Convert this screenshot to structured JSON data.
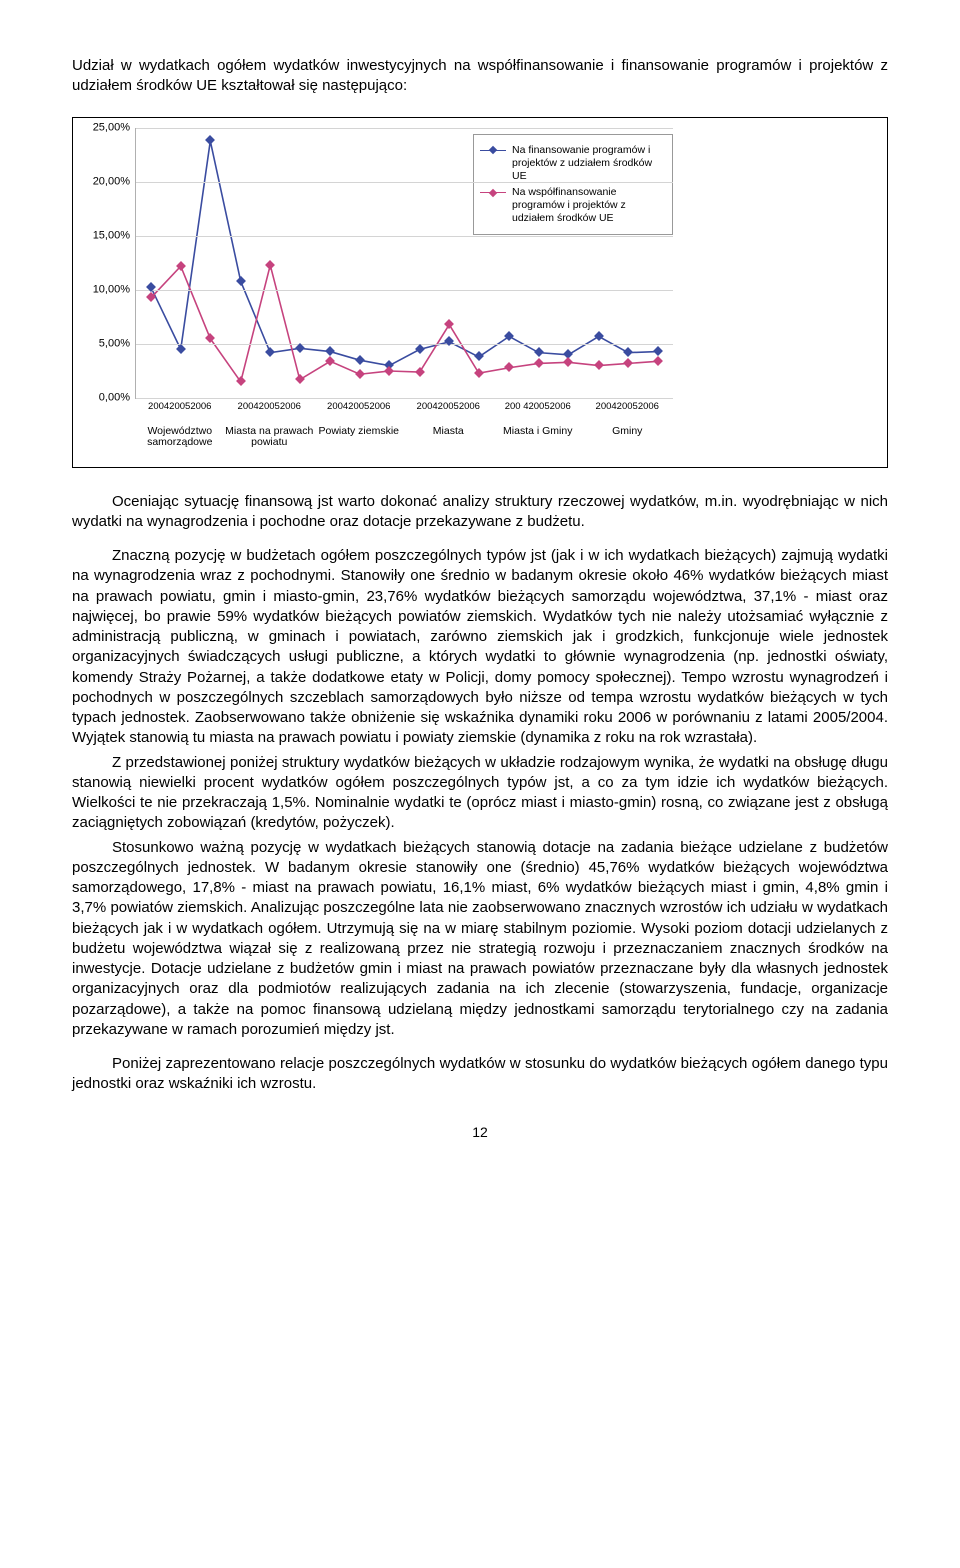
{
  "intro": "Udział w wydatkach ogółem wydatków inwestycyjnych na współfinansowanie i finansowanie programów i projektów z udziałem środków UE kształtował się następująco:",
  "chart": {
    "ymax": 25,
    "ymin": 0,
    "ytick_step": 5,
    "ytick_labels": [
      "0,00%",
      "5,00%",
      "10,00%",
      "15,00%",
      "20,00%",
      "25,00%"
    ],
    "plot_bg": "#ffffff",
    "grid_color": "#d4d4d4",
    "series": [
      {
        "name": "Na finansowanie programów i projektów z udziałem środków UE",
        "color": "#3a4ca0",
        "values": [
          10.2,
          4.5,
          23.8,
          10.8,
          4.2,
          4.6,
          4.3,
          3.5,
          3.0,
          4.5,
          5.2,
          3.8,
          5.7,
          4.2,
          4.0,
          5.7,
          4.2,
          4.3
        ]
      },
      {
        "name": "Na współfinansowanie programów i projektów z udziałem środków UE",
        "color": "#c6437e",
        "values": [
          9.3,
          12.2,
          5.5,
          1.5,
          12.3,
          1.7,
          3.4,
          2.2,
          2.5,
          2.4,
          6.8,
          2.3,
          2.8,
          3.2,
          3.3,
          3.0,
          3.2,
          3.4
        ]
      }
    ],
    "groups": [
      {
        "years": [
          "2004",
          "2005",
          "2006"
        ],
        "label": "Województwo samorządowe"
      },
      {
        "years": [
          "2004",
          "2005",
          "2006"
        ],
        "label": "Miasta na prawach powiatu"
      },
      {
        "years": [
          "2004",
          "2005",
          "2006"
        ],
        "label": "Powiaty ziemskie"
      },
      {
        "years": [
          "2004",
          "2005",
          "2006"
        ],
        "label": "Miasta"
      },
      {
        "years": [
          "200 4",
          "2005",
          "2006"
        ],
        "label": "Miasta i Gminy"
      },
      {
        "years": [
          "2004",
          "2005",
          "2006"
        ],
        "label": "Gminy"
      }
    ]
  },
  "para1": "Oceniając sytuację finansową jst warto dokonać analizy struktury rzeczowej wydatków, m.in. wyodrębniając w nich wydatki na wynagrodzenia i pochodne oraz dotacje przekazywane z budżetu.",
  "para2": "Znaczną pozycję w budżetach ogółem poszczególnych typów jst (jak i w ich wydatkach bieżących) zajmują wydatki na wynagrodzenia wraz z pochodnymi. Stanowiły one średnio w badanym okresie około 46% wydatków bieżących miast na prawach powiatu, gmin i miasto-gmin, 23,76% wydatków bieżących samorządu województwa, 37,1% - miast oraz najwięcej, bo prawie 59% wydatków bieżących powiatów ziemskich. Wydatków tych nie należy utożsamiać wyłącznie z administracją publiczną, w gminach i powiatach, zarówno ziemskich jak i grodzkich, funkcjonuje wiele jednostek organizacyjnych świadczących usługi publiczne, a których wydatki to głównie wynagrodzenia (np. jednostki oświaty, komendy Straży Pożarnej, a także dodatkowe etaty w Policji, domy pomocy społecznej). Tempo wzrostu wynagrodzeń i pochodnych w poszczególnych szczeblach samorządowych było niższe od tempa wzrostu wydatków bieżących w tych typach jednostek. Zaobserwowano także obniżenie się wskaźnika dynamiki roku 2006 w porównaniu z latami 2005/2004. Wyjątek stanowią tu miasta na prawach powiatu i powiaty ziemskie (dynamika z roku na rok wzrastała).",
  "para3": "Z przedstawionej poniżej struktury wydatków bieżących w układzie rodzajowym wynika, że wydatki na obsługę długu stanowią niewielki procent wydatków ogółem poszczególnych typów jst, a co za tym idzie ich wydatków bieżących. Wielkości te nie przekraczają 1,5%. Nominalnie wydatki te (oprócz miast i miasto-gmin) rosną, co związane jest z obsługą zaciągniętych zobowiązań (kredytów, pożyczek).",
  "para4": "Stosunkowo ważną pozycję w wydatkach bieżących stanowią dotacje na zadania bieżące udzielane z budżetów poszczególnych jednostek. W badanym okresie stanowiły one (średnio) 45,76% wydatków bieżących województwa samorządowego, 17,8% - miast na prawach powiatu, 16,1% miast, 6% wydatków bieżących miast i gmin, 4,8% gmin i 3,7% powiatów ziemskich. Analizując poszczególne lata nie zaobserwowano znacznych wzrostów ich udziału w wydatkach bieżących jak i w wydatkach ogółem. Utrzymują się na w miarę stabilnym poziomie. Wysoki poziom dotacji udzielanych z budżetu województwa wiązał się z realizowaną przez nie strategią rozwoju i przeznaczaniem znacznych środków na inwestycje. Dotacje udzielane z budżetów gmin i miast na prawach powiatów przeznaczane były dla własnych jednostek organizacyjnych oraz dla podmiotów realizujących zadania na ich zlecenie (stowarzyszenia, fundacje, organizacje pozarządowe), a także na pomoc finansową udzielaną między jednostkami samorządu terytorialnego czy na zadania przekazywane w ramach porozumień między jst.",
  "para5": "Poniżej zaprezentowano relacje poszczególnych wydatków w stosunku do wydatków bieżących ogółem danego typu jednostki oraz wskaźniki ich wzrostu.",
  "page_number": "12"
}
